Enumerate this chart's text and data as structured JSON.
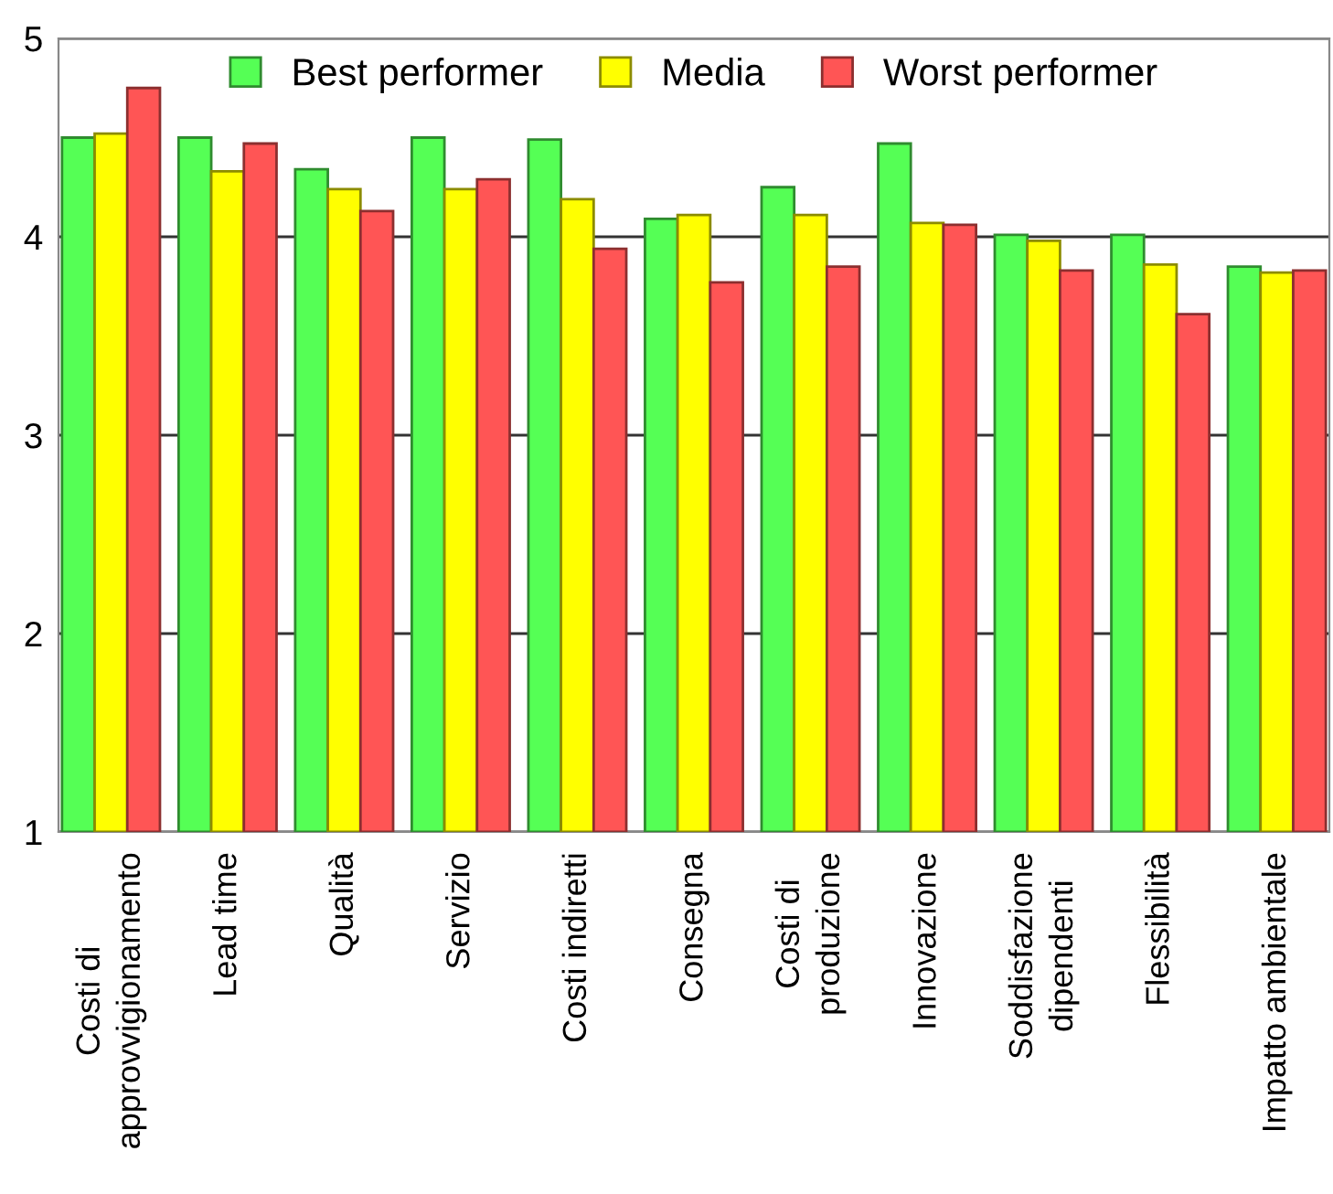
{
  "chart_data": {
    "type": "bar",
    "categories": [
      "Costi di\napprovvigionamento",
      "Lead time",
      "Qualità",
      "Servizio",
      "Costi indiretti",
      "Consegna",
      "Costi di\nproduzione",
      "Innovazione",
      "Soddisfazione\ndipendenti",
      "Flessibilità",
      "Impatto ambientale"
    ],
    "series": [
      {
        "name": "Best performer",
        "color": "#55ff55",
        "values": [
          4.5,
          4.5,
          4.34,
          4.5,
          4.49,
          4.09,
          4.25,
          4.47,
          4.01,
          4.01,
          3.85
        ]
      },
      {
        "name": "Media",
        "color": "#ffff00",
        "values": [
          4.52,
          4.33,
          4.24,
          4.24,
          4.19,
          4.11,
          4.11,
          4.07,
          3.98,
          3.86,
          3.82
        ]
      },
      {
        "name": "Worst performer",
        "color": "#ff5555",
        "values": [
          4.75,
          4.47,
          4.13,
          4.29,
          3.94,
          3.77,
          3.85,
          4.06,
          3.83,
          3.61,
          3.83
        ]
      }
    ],
    "ylim": [
      1,
      5
    ],
    "yticks": [
      1,
      2,
      3,
      4,
      5
    ],
    "grid": "y",
    "legend": "top"
  }
}
